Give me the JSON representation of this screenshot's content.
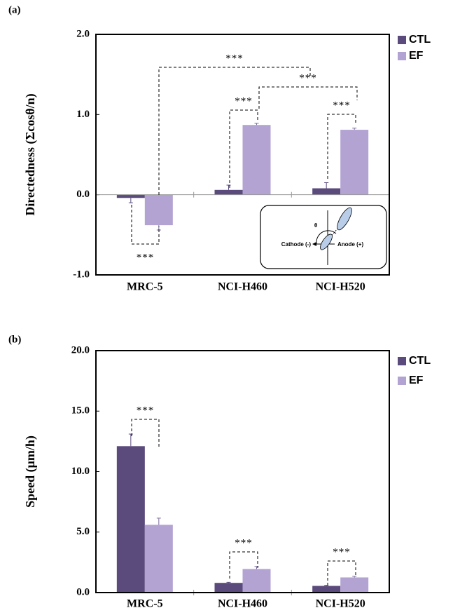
{
  "chart_data": [
    {
      "type": "bar",
      "panel_label": "(a)",
      "y_label": "Directedness (Σcosθ/n)",
      "categories": [
        "MRC-5",
        "NCI-H460",
        "NCI-H520"
      ],
      "series": [
        {
          "name": "CTL",
          "color": "#5b4a7c",
          "values": [
            -0.04,
            0.06,
            0.08
          ],
          "errors": [
            0.06,
            0.06,
            0.07
          ]
        },
        {
          "name": "EF",
          "color": "#b3a3d3",
          "values": [
            -0.38,
            0.87,
            0.81
          ],
          "errors": [
            0.06,
            0.02,
            0.02
          ]
        }
      ],
      "ylim": [
        -1,
        2
      ],
      "yticks": [
        {
          "value": -1,
          "label": "-1.0"
        },
        {
          "value": 0,
          "label": "0.0"
        },
        {
          "value": 1,
          "label": "1.0"
        },
        {
          "value": 2,
          "label": "2.0"
        }
      ],
      "legend": "right",
      "annotations": [
        "***",
        "***",
        "***",
        "***",
        "***"
      ],
      "inset_labels": [
        "θ",
        "Cathode (-)",
        "Anode (+)"
      ]
    },
    {
      "type": "bar",
      "panel_label": "(b)",
      "y_label": "Speed (μm/h)",
      "categories": [
        "MRC-5",
        "NCI-H460",
        "NCI-H520"
      ],
      "series": [
        {
          "name": "CTL",
          "color": "#5b4a7c",
          "values": [
            12.1,
            0.8,
            0.55
          ],
          "errors": [
            1.0,
            0.05,
            0.05
          ]
        },
        {
          "name": "EF",
          "color": "#b3a3d3",
          "values": [
            5.6,
            1.95,
            1.25
          ],
          "errors": [
            0.55,
            0.2,
            0.1
          ]
        }
      ],
      "ylim": [
        0,
        20
      ],
      "yticks": [
        {
          "value": 0,
          "label": "0.0"
        },
        {
          "value": 5,
          "label": "5.0"
        },
        {
          "value": 10,
          "label": "10.0"
        },
        {
          "value": 15,
          "label": "15.0"
        },
        {
          "value": 20,
          "label": "20.0"
        }
      ],
      "legend": "right",
      "annotations": [
        "***",
        "***",
        "***"
      ]
    }
  ]
}
